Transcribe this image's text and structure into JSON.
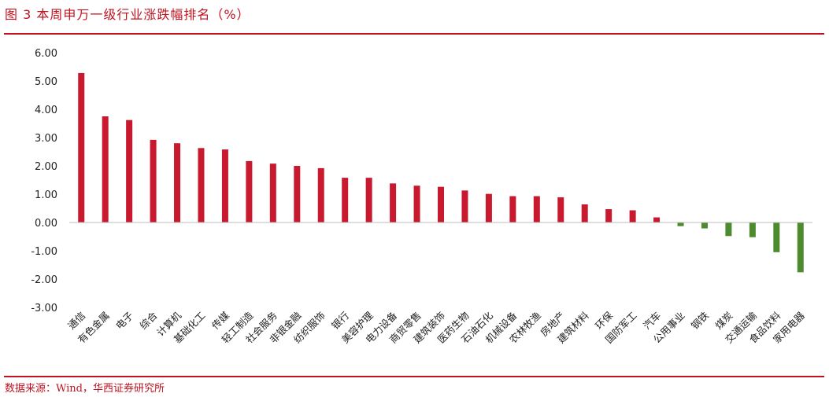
{
  "title": "图 3 本周申万一级行业涨跌幅排名（%）",
  "source": "数据来源：Wind，华西证券研究所",
  "colors": {
    "positive": "#c8192e",
    "negative": "#4e8a2e",
    "accent": "#c0121f"
  },
  "chart_data": {
    "type": "bar",
    "title": "图 3 本周申万一级行业涨跌幅排名（%）",
    "ylim": [
      -3,
      6
    ],
    "yticks": [
      "6.00",
      "5.00",
      "4.00",
      "3.00",
      "2.00",
      "1.00",
      "0.00",
      "-1.00",
      "-2.00",
      "-3.00"
    ],
    "grid": false,
    "categories": [
      "通信",
      "有色金属",
      "电子",
      "综合",
      "计算机",
      "基础化工",
      "传媒",
      "轻工制造",
      "社会服务",
      "非银金融",
      "纺织服饰",
      "银行",
      "美容护理",
      "电力设备",
      "商贸零售",
      "建筑装饰",
      "医药生物",
      "石油石化",
      "机械设备",
      "农林牧渔",
      "房地产",
      "建筑材料",
      "环保",
      "国防军工",
      "汽车",
      "公用事业",
      "钢铁",
      "煤炭",
      "交通运输",
      "食品饮料",
      "家用电器"
    ],
    "values": [
      5.28,
      3.75,
      3.62,
      2.92,
      2.8,
      2.63,
      2.58,
      2.17,
      2.08,
      2.0,
      1.92,
      1.58,
      1.58,
      1.38,
      1.3,
      1.26,
      1.13,
      1.01,
      0.93,
      0.93,
      0.89,
      0.64,
      0.47,
      0.43,
      0.18,
      -0.13,
      -0.21,
      -0.48,
      -0.52,
      -1.05,
      -1.76
    ]
  }
}
